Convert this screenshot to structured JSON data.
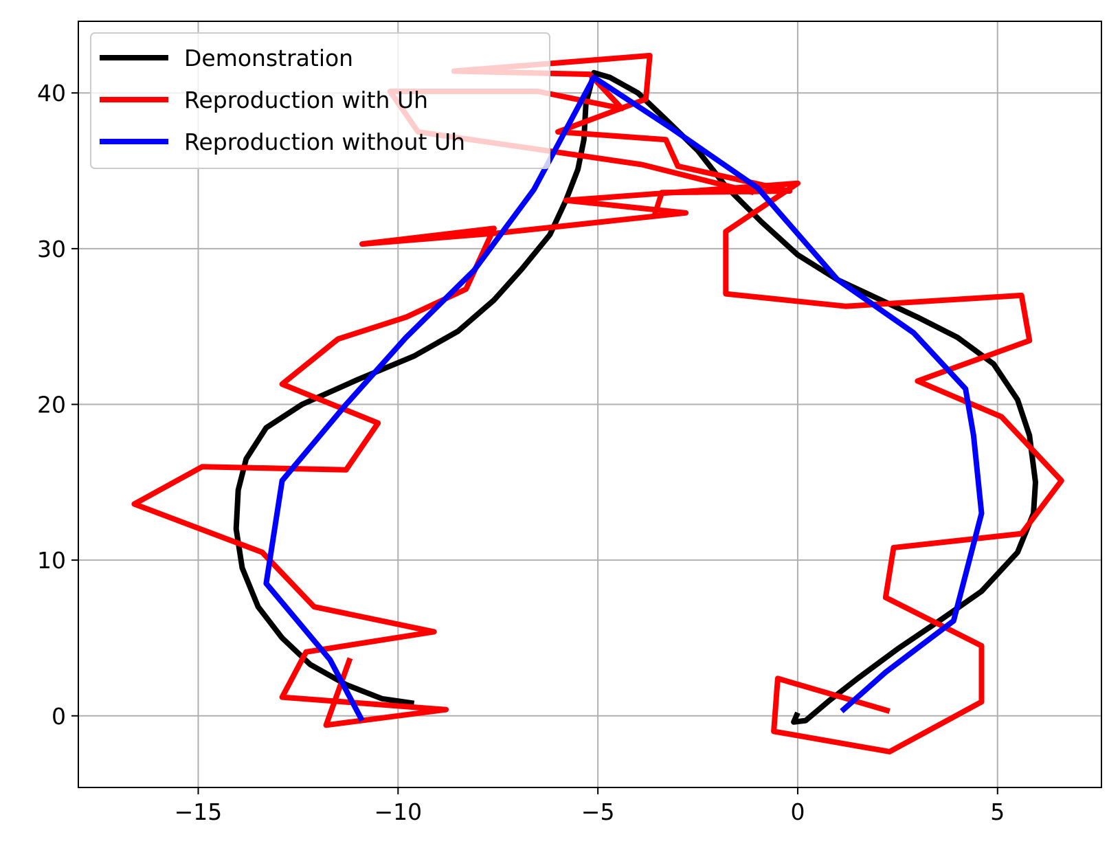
{
  "chart_data": {
    "type": "line",
    "title": "",
    "xlabel": "",
    "ylabel": "",
    "xlim": [
      -18.0,
      7.6
    ],
    "ylim": [
      -4.6,
      44.6
    ],
    "xticks": [
      -15,
      -10,
      -5,
      0,
      5
    ],
    "yticks": [
      0,
      10,
      20,
      30,
      40
    ],
    "xtick_labels": [
      "−15",
      "−10",
      "−5",
      "0",
      "5"
    ],
    "ytick_labels": [
      "0",
      "10",
      "20",
      "30",
      "40"
    ],
    "grid": true,
    "legend_position": "upper-left",
    "series": [
      {
        "name": "Demonstration",
        "color": "#000000",
        "points": [
          [
            -9.6,
            0.8
          ],
          [
            -10.4,
            1.1
          ],
          [
            -11.3,
            2.0
          ],
          [
            -12.2,
            3.3
          ],
          [
            -12.9,
            5.0
          ],
          [
            -13.5,
            7.0
          ],
          [
            -13.9,
            9.5
          ],
          [
            -14.05,
            12.0
          ],
          [
            -14.0,
            14.5
          ],
          [
            -13.8,
            16.5
          ],
          [
            -13.3,
            18.5
          ],
          [
            -12.4,
            20.0
          ],
          [
            -11.0,
            21.6
          ],
          [
            -9.6,
            23.1
          ],
          [
            -8.5,
            24.7
          ],
          [
            -7.6,
            26.7
          ],
          [
            -6.9,
            28.7
          ],
          [
            -6.2,
            30.9
          ],
          [
            -5.8,
            33.1
          ],
          [
            -5.5,
            35.1
          ],
          [
            -5.35,
            37.0
          ],
          [
            -5.3,
            39.3
          ],
          [
            -5.1,
            41.3
          ],
          [
            -4.7,
            41.0
          ],
          [
            -4.0,
            40.0
          ],
          [
            -3.3,
            38.3
          ],
          [
            -2.5,
            36.3
          ],
          [
            -1.8,
            34.0
          ],
          [
            -0.9,
            31.7
          ],
          [
            0.0,
            29.6
          ],
          [
            1.0,
            28.0
          ],
          [
            2.0,
            26.8
          ],
          [
            3.0,
            25.6
          ],
          [
            4.0,
            24.3
          ],
          [
            4.9,
            22.6
          ],
          [
            5.5,
            20.3
          ],
          [
            5.8,
            18.0
          ],
          [
            5.95,
            15.0
          ],
          [
            5.9,
            13.0
          ],
          [
            5.5,
            10.5
          ],
          [
            4.6,
            8.0
          ],
          [
            3.6,
            6.2
          ],
          [
            2.5,
            4.3
          ],
          [
            1.5,
            2.4
          ],
          [
            0.8,
            1.0
          ],
          [
            0.2,
            -0.3
          ],
          [
            -0.1,
            -0.4
          ],
          [
            0.0,
            0.2
          ]
        ]
      },
      {
        "name": "Reproduction with Uh",
        "color": "#ff0000",
        "points": [
          [
            -11.2,
            3.7
          ],
          [
            -11.8,
            -0.6
          ],
          [
            -8.8,
            0.4
          ],
          [
            -12.9,
            1.2
          ],
          [
            -12.3,
            4.1
          ],
          [
            -9.1,
            5.4
          ],
          [
            -12.1,
            7.0
          ],
          [
            -13.4,
            10.5
          ],
          [
            -16.6,
            13.6
          ],
          [
            -14.9,
            16.0
          ],
          [
            -11.3,
            15.8
          ],
          [
            -10.5,
            18.8
          ],
          [
            -12.9,
            21.3
          ],
          [
            -11.5,
            24.2
          ],
          [
            -9.8,
            25.6
          ],
          [
            -8.3,
            27.4
          ],
          [
            -7.6,
            31.3
          ],
          [
            -10.9,
            30.3
          ],
          [
            -7.5,
            31.0
          ],
          [
            -2.8,
            32.3
          ],
          [
            -5.8,
            33.1
          ],
          [
            0.0,
            34.2
          ],
          [
            -1.8,
            31.1
          ],
          [
            -1.8,
            27.1
          ],
          [
            1.2,
            26.3
          ],
          [
            5.6,
            27.0
          ],
          [
            5.8,
            24.1
          ],
          [
            3.0,
            21.5
          ],
          [
            5.1,
            19.2
          ],
          [
            6.6,
            15.1
          ],
          [
            5.6,
            11.7
          ],
          [
            2.4,
            10.8
          ],
          [
            2.2,
            7.6
          ],
          [
            4.6,
            4.5
          ],
          [
            4.6,
            0.9
          ],
          [
            2.3,
            -2.3
          ],
          [
            -0.6,
            -1.0
          ],
          [
            -0.5,
            2.4
          ],
          [
            2.3,
            0.3
          ]
        ],
        "top_segment": [
          [
            -3.6,
            32.0
          ],
          [
            -3.4,
            33.6
          ],
          [
            -0.2,
            33.7
          ],
          [
            -3.0,
            35.3
          ],
          [
            -3.3,
            37.0
          ],
          [
            -6.0,
            37.5
          ],
          [
            -3.8,
            39.6
          ],
          [
            -3.7,
            42.4
          ],
          [
            -8.6,
            41.4
          ],
          [
            -5.2,
            41.2
          ],
          [
            -4.4,
            39.0
          ],
          [
            -6.5,
            40.1
          ],
          [
            -10.2,
            40.1
          ],
          [
            -9.5,
            37.5
          ],
          [
            -6.3,
            36.3
          ],
          [
            -3.9,
            35.4
          ],
          [
            -1.1,
            33.6
          ]
        ]
      },
      {
        "name": "Reproduction without Uh",
        "color": "#0000ff",
        "points": [
          [
            -10.9,
            -0.3
          ],
          [
            -11.7,
            3.6
          ],
          [
            -13.3,
            8.5
          ],
          [
            -12.9,
            15.1
          ],
          [
            -11.3,
            20.0
          ],
          [
            -9.8,
            24.3
          ],
          [
            -8.1,
            28.6
          ],
          [
            -6.6,
            33.8
          ],
          [
            -5.1,
            41.0
          ],
          [
            -3.2,
            37.8
          ],
          [
            -1.0,
            33.9
          ],
          [
            1.0,
            28.0
          ],
          [
            2.9,
            24.6
          ],
          [
            4.2,
            21.0
          ],
          [
            4.4,
            18.0
          ],
          [
            4.6,
            13.0
          ],
          [
            3.9,
            6.1
          ],
          [
            2.2,
            2.8
          ],
          [
            1.1,
            0.3
          ]
        ]
      }
    ]
  }
}
